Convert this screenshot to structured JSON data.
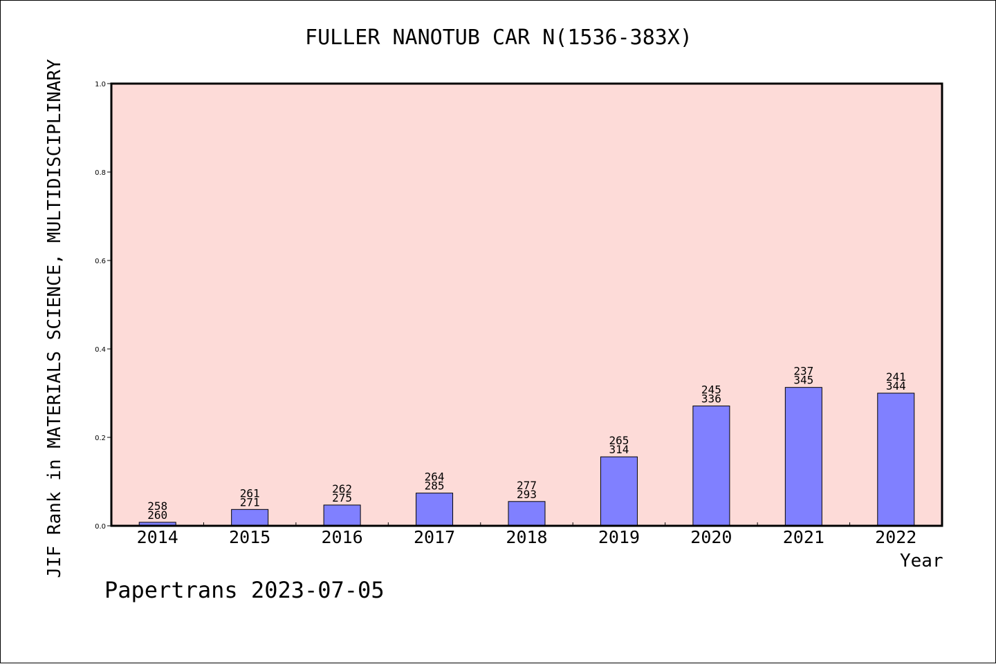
{
  "colors": {
    "plot_background": "#fddbd8",
    "bar_fill": "#8080ff",
    "axis": "#000000"
  },
  "footer": "Papertrans 2023-07-05",
  "chart_data": {
    "type": "bar",
    "title": "FULLER NANOTUB CAR N(1536-383X)",
    "xlabel": "Year",
    "ylabel": "JIF Rank in MATERIALS SCIENCE, MULTIDISCIPLINARY",
    "ylim": [
      0,
      1.0
    ],
    "yticks": [
      "0.0",
      "0.2",
      "0.4",
      "0.6",
      "0.8",
      "1.0"
    ],
    "grid": false,
    "categories": [
      "2014",
      "2015",
      "2016",
      "2017",
      "2018",
      "2019",
      "2020",
      "2021",
      "2022"
    ],
    "values": [
      0.008,
      0.037,
      0.047,
      0.074,
      0.055,
      0.156,
      0.271,
      0.313,
      0.3
    ],
    "rank": [
      "258",
      "261",
      "262",
      "264",
      "277",
      "265",
      "245",
      "237",
      "241"
    ],
    "total": [
      "260",
      "271",
      "275",
      "285",
      "293",
      "314",
      "336",
      "345",
      "344"
    ]
  }
}
